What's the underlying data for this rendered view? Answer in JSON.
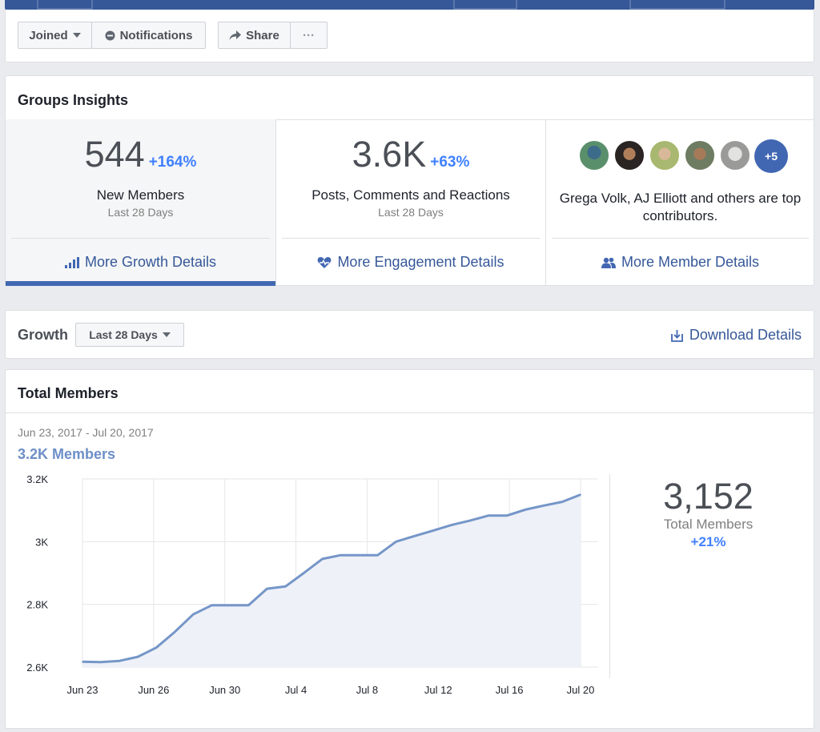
{
  "header": {
    "joined_label": "Joined",
    "notifications_label": "Notifications",
    "share_label": "Share",
    "more_label": "···"
  },
  "insights": {
    "title": "Groups Insights",
    "tiles": [
      {
        "value": "544",
        "change": "+164%",
        "label": "New Members",
        "period": "Last 28 Days",
        "link": "More Growth Details"
      },
      {
        "value": "3.6K",
        "change": "+63%",
        "label": "Posts, Comments and Reactions",
        "period": "Last 28 Days",
        "link": "More Engagement Details"
      },
      {
        "contributors_text": "Grega Volk, AJ Elliott and others are top contributors.",
        "more_count": "+5",
        "link": "More Member Details"
      }
    ]
  },
  "growth": {
    "title": "Growth",
    "range_label": "Last 28 Days",
    "download_label": "Download Details"
  },
  "total_members": {
    "title": "Total Members",
    "date_range": "Jun 23, 2017 - Jul 20, 2017",
    "headline": "3.2K Members",
    "summary_value": "3,152",
    "summary_label": "Total Members",
    "summary_change": "+21%"
  },
  "colors": {
    "brand": "#4267b2",
    "accent": "#4080ff",
    "link": "#365899",
    "line": "#7596c8"
  },
  "chart_data": {
    "type": "area",
    "x_ticks": [
      "Jun 23",
      "Jun 26",
      "Jun 30",
      "Jul 4",
      "Jul 8",
      "Jul 12",
      "Jul 16",
      "Jul 20"
    ],
    "y_ticks": [
      "2.6K",
      "2.8K",
      "3K",
      "3.2K"
    ],
    "ylim": [
      2600,
      3200
    ],
    "grid": true,
    "values": [
      2617,
      2616,
      2620,
      2633,
      2662,
      2712,
      2768,
      2797,
      2797,
      2797,
      2850,
      2857,
      2900,
      2945,
      2957,
      2957,
      2957,
      3000,
      3018,
      3035,
      3053,
      3067,
      3083,
      3083,
      3102,
      3115,
      3127,
      3150
    ]
  }
}
